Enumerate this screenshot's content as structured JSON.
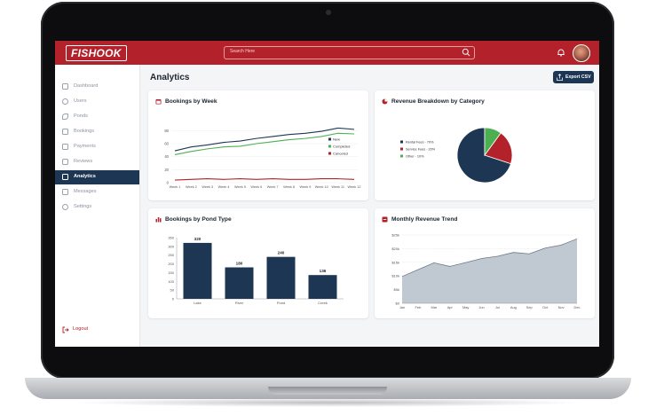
{
  "app": {
    "logo_text": "FISHOOK"
  },
  "search": {
    "placeholder": "Search Here"
  },
  "sidebar": {
    "items": [
      {
        "label": "Dashboard",
        "icon": "dashboard-icon",
        "active": false
      },
      {
        "label": "Users",
        "icon": "users-icon",
        "active": false
      },
      {
        "label": "Ponds",
        "icon": "fish-icon",
        "active": false
      },
      {
        "label": "Bookings",
        "icon": "calendar-icon",
        "active": false
      },
      {
        "label": "Payments",
        "icon": "wallet-icon",
        "active": false
      },
      {
        "label": "Reviews",
        "icon": "reviews-icon",
        "active": false
      },
      {
        "label": "Analytics",
        "icon": "analytics-icon",
        "active": true
      },
      {
        "label": "Messages",
        "icon": "message-icon",
        "active": false
      },
      {
        "label": "Settings",
        "icon": "gear-icon",
        "active": false
      }
    ],
    "logout_label": "Logout"
  },
  "page": {
    "title": "Analytics",
    "export_label": "Export CSV"
  },
  "colors": {
    "brand_red": "#b3212a",
    "navy": "#1d3654",
    "green": "#4caf50",
    "slate": "#b9c2cc"
  },
  "cards": {
    "bookings_week": {
      "title": "Bookings by Week"
    },
    "revenue_category": {
      "title": "Revenue Breakdown by Category"
    },
    "pond_type": {
      "title": "Bookings by Pond Type"
    },
    "monthly_revenue": {
      "title": "Monthly Revenue Trend"
    }
  },
  "chart_data": [
    {
      "id": "bookings_week",
      "type": "line",
      "title": "Bookings by Week",
      "x": [
        "Week 1",
        "Week 2",
        "Week 3",
        "Week 4",
        "Week 5",
        "Week 6",
        "Week 7",
        "Week 8",
        "Week 9",
        "Week 10",
        "Week 11",
        "Week 12"
      ],
      "yticks": [
        0,
        20,
        40,
        60,
        80
      ],
      "ylim": [
        0,
        90
      ],
      "legend": "inside-right",
      "series": [
        {
          "name": "New",
          "color": "#1d3654",
          "values": [
            49,
            55,
            58,
            62,
            64,
            68,
            71,
            74,
            76,
            79,
            84,
            82
          ]
        },
        {
          "name": "Completed",
          "color": "#4caf50",
          "values": [
            43,
            48,
            52,
            55,
            56,
            60,
            63,
            66,
            68,
            71,
            76,
            75
          ]
        },
        {
          "name": "Canceled",
          "color": "#b3212a",
          "values": [
            4,
            5,
            6,
            5,
            6,
            5,
            6,
            5,
            5,
            6,
            6,
            5
          ]
        }
      ]
    },
    {
      "id": "revenue_category",
      "type": "pie",
      "title": "Revenue Breakdown by Category",
      "legend": "left",
      "slices": [
        {
          "label": "Rental Fees - 70%",
          "value": 70,
          "color": "#1d3654"
        },
        {
          "label": "Service Fees - 20%",
          "value": 20,
          "color": "#b3212a"
        },
        {
          "label": "Other - 10%",
          "value": 10,
          "color": "#4caf50"
        }
      ]
    },
    {
      "id": "pond_type",
      "type": "bar",
      "title": "Bookings by Pond Type",
      "categories": [
        "Lake",
        "River",
        "Pond",
        "Creek"
      ],
      "values": [
        320,
        180,
        240,
        136
      ],
      "value_labels": [
        "320",
        "180",
        "240",
        "136"
      ],
      "yticks": [
        0,
        50,
        100,
        150,
        200,
        250,
        300,
        350
      ],
      "ylim": [
        0,
        350
      ],
      "color": "#1d3654"
    },
    {
      "id": "monthly_revenue",
      "type": "area",
      "title": "Monthly Revenue Trend",
      "x": [
        "Jan",
        "Feb",
        "Mar",
        "Apr",
        "May",
        "Jun",
        "Jul",
        "Aug",
        "Sep",
        "Oct",
        "Nov",
        "Dec"
      ],
      "ytick_labels": [
        "$0",
        "$5k",
        "$10k",
        "$15k",
        "$20k",
        "$25k"
      ],
      "yticks": [
        0,
        5000,
        10000,
        15000,
        20000,
        25000
      ],
      "ylim": [
        0,
        25000
      ],
      "values": [
        9800,
        12300,
        14800,
        13500,
        14900,
        16400,
        17200,
        18600,
        18100,
        20200,
        21300,
        23600
      ],
      "color": "#b9c2cc"
    }
  ]
}
